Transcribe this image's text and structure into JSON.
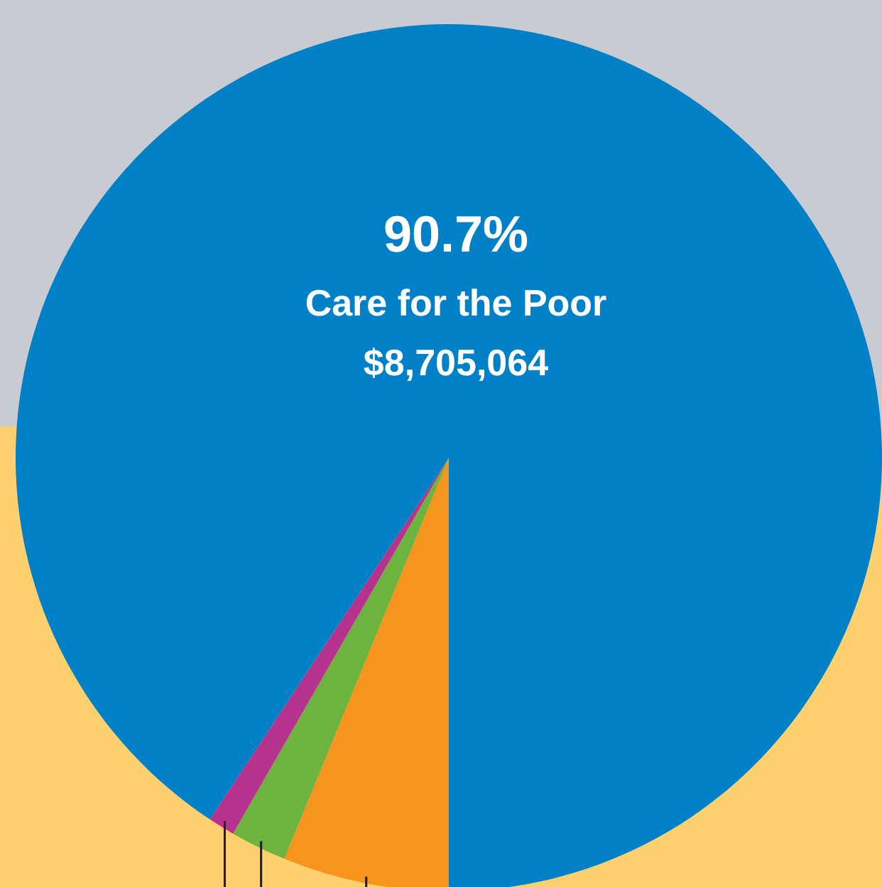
{
  "chart_data": {
    "type": "pie",
    "categories": [
      null,
      null,
      null,
      "Care for the Poor"
    ],
    "values": [
      6.2,
      2.1,
      1.0,
      90.7
    ],
    "colors": [
      "#f7941d",
      "#6db33f",
      "#b5338f",
      "#0080c6"
    ],
    "value_labels": [
      null,
      null,
      null,
      "90.7%"
    ],
    "annotations": [
      "$8,705,064"
    ]
  }
}
